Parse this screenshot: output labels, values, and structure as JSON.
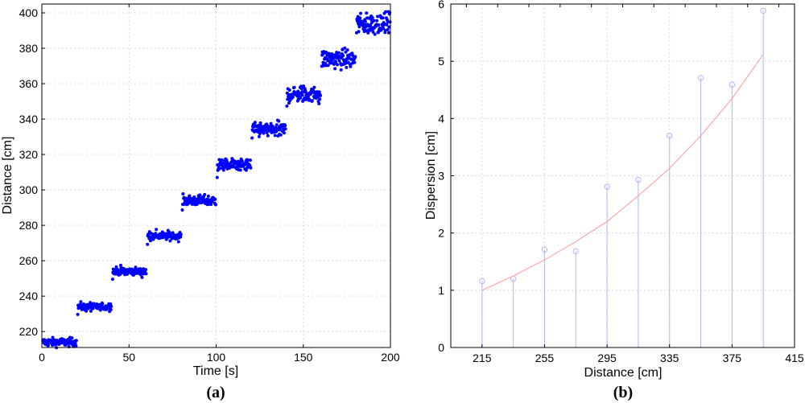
{
  "chart_data": [
    {
      "type": "scatter",
      "panel_label": "(a)",
      "xlabel": "Time [s]",
      "ylabel": "Distance [cm]",
      "xlim": [
        0,
        200
      ],
      "ylim": [
        211,
        405
      ],
      "xticks": [
        0,
        50,
        100,
        150,
        200
      ],
      "yticks": [
        220,
        240,
        260,
        280,
        300,
        320,
        340,
        360,
        380,
        400
      ],
      "grid": true,
      "marker_color": "#0000ff",
      "steps": [
        {
          "t_start": 0,
          "t_end": 20,
          "level": 214,
          "spread": 1.2
        },
        {
          "t_start": 20,
          "t_end": 40,
          "level": 234,
          "spread": 1.2
        },
        {
          "t_start": 40,
          "t_end": 60,
          "level": 254,
          "spread": 1.2
        },
        {
          "t_start": 60,
          "t_end": 80,
          "level": 274,
          "spread": 1.3
        },
        {
          "t_start": 80,
          "t_end": 100,
          "level": 294,
          "spread": 1.5
        },
        {
          "t_start": 100,
          "t_end": 120,
          "level": 314,
          "spread": 1.7
        },
        {
          "t_start": 120,
          "t_end": 140,
          "level": 334,
          "spread": 2.0
        },
        {
          "t_start": 140,
          "t_end": 160,
          "level": 354,
          "spread": 2.4
        },
        {
          "t_start": 160,
          "t_end": 180,
          "level": 374,
          "spread": 2.7
        },
        {
          "t_start": 180,
          "t_end": 200,
          "level": 394,
          "spread": 3.0
        }
      ]
    },
    {
      "type": "stem",
      "panel_label": "(b)",
      "xlabel": "Distance [cm]",
      "ylabel": "Dispersion [cm]",
      "xlim": [
        195,
        415
      ],
      "ylim": [
        0,
        6
      ],
      "xticks": [
        215,
        255,
        295,
        335,
        375,
        415
      ],
      "yticks": [
        0,
        1,
        2,
        3,
        4,
        5,
        6
      ],
      "grid": true,
      "stem_color": "#b3b3ff",
      "fit_color": "#ff9999",
      "x": [
        215,
        235,
        255,
        275,
        295,
        315,
        335,
        355,
        375,
        395
      ],
      "values": [
        1.16,
        1.2,
        1.71,
        1.68,
        2.81,
        2.93,
        3.7,
        4.71,
        4.59,
        5.88
      ],
      "fit": {
        "x": [
          215,
          235,
          255,
          275,
          295,
          315,
          335,
          355,
          375,
          395
        ],
        "y": [
          1.0,
          1.25,
          1.53,
          1.85,
          2.2,
          2.65,
          3.13,
          3.7,
          4.35,
          5.12
        ]
      }
    }
  ]
}
